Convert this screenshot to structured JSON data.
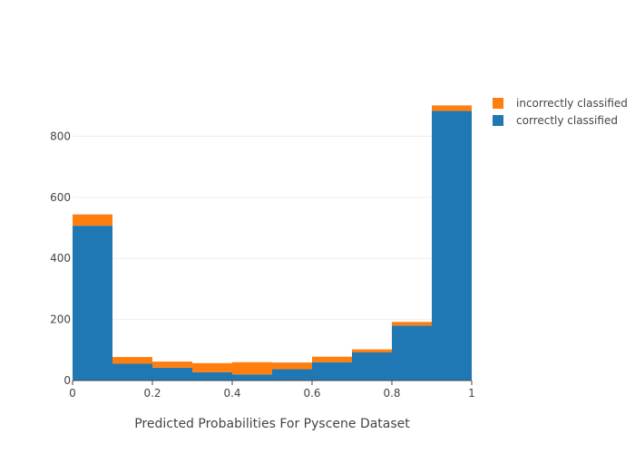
{
  "chart_data": {
    "type": "bar",
    "stacked": true,
    "bin_edges": [
      0,
      0.1,
      0.2,
      0.3,
      0.4,
      0.5,
      0.6,
      0.7,
      0.8,
      0.9,
      1.0
    ],
    "series": [
      {
        "name": "correctly classified",
        "color": "#1f77b4",
        "values": [
          507,
          55,
          42,
          27,
          20,
          37,
          60,
          92,
          180,
          883
        ]
      },
      {
        "name": "incorrectly classified",
        "color": "#ff7f0e",
        "values": [
          37,
          22,
          20,
          30,
          40,
          22,
          18,
          10,
          12,
          18
        ]
      }
    ],
    "title": "",
    "xlabel": "Predicted Probabilities For Pyscene Dataset",
    "ylabel": "",
    "xlim": [
      0,
      1
    ],
    "ylim": [
      0,
      905
    ],
    "x_ticks": [
      {
        "value": 0,
        "label": "0"
      },
      {
        "value": 0.2,
        "label": "0.2"
      },
      {
        "value": 0.4,
        "label": "0.4"
      },
      {
        "value": 0.6,
        "label": "0.6"
      },
      {
        "value": 0.8,
        "label": "0.8"
      },
      {
        "value": 1,
        "label": "1"
      }
    ],
    "y_ticks": [
      {
        "value": 0,
        "label": "0"
      },
      {
        "value": 200,
        "label": "200"
      },
      {
        "value": 400,
        "label": "400"
      },
      {
        "value": 600,
        "label": "600"
      },
      {
        "value": 800,
        "label": "800"
      }
    ],
    "grid": true,
    "legend": {
      "placement": "top-right",
      "items": [
        {
          "label": "incorrectly classified",
          "color": "#ff7f0e"
        },
        {
          "label": "correctly classified",
          "color": "#1f77b4"
        }
      ]
    }
  }
}
